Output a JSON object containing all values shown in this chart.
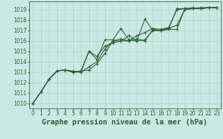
{
  "title": "Graphe pression niveau de la mer (hPa)",
  "bg_color": "#cce8e4",
  "grid_color": "#aad4cc",
  "line_color": "#2d5e30",
  "ylim": [
    1009.5,
    1019.8
  ],
  "xlim": [
    -0.5,
    23.5
  ],
  "yticks": [
    1010,
    1011,
    1012,
    1013,
    1014,
    1015,
    1016,
    1017,
    1018,
    1019
  ],
  "xticks": [
    0,
    1,
    2,
    3,
    4,
    5,
    6,
    7,
    8,
    9,
    10,
    11,
    12,
    13,
    14,
    15,
    16,
    17,
    18,
    19,
    20,
    21,
    22,
    23
  ],
  "series": [
    [
      1010.0,
      1011.1,
      1012.3,
      1013.1,
      1013.2,
      1013.1,
      1013.0,
      1015.0,
      1014.2,
      1016.1,
      1016.1,
      1017.2,
      1016.1,
      1016.0,
      1018.1,
      1017.0,
      1017.0,
      1017.2,
      1019.1,
      1019.1,
      1019.1,
      1019.1,
      1019.2,
      1019.2
    ],
    [
      1010.0,
      1011.1,
      1012.3,
      1013.1,
      1013.2,
      1013.0,
      1013.1,
      1013.2,
      1013.8,
      1014.8,
      1016.0,
      1016.0,
      1016.0,
      1016.2,
      1016.0,
      1017.1,
      1017.0,
      1017.1,
      1017.1,
      1019.1,
      1019.1,
      1019.1,
      1019.2,
      1019.2
    ],
    [
      1010.0,
      1011.1,
      1012.3,
      1013.1,
      1013.2,
      1013.0,
      1013.1,
      1015.0,
      1014.5,
      1015.5,
      1015.8,
      1016.0,
      1016.5,
      1016.0,
      1016.1,
      1017.0,
      1017.0,
      1017.2,
      1017.5,
      1019.0,
      1019.1,
      1019.2,
      1019.2,
      1019.2
    ],
    [
      1010.0,
      1011.1,
      1012.3,
      1013.1,
      1013.2,
      1013.0,
      1013.0,
      1013.5,
      1014.0,
      1015.2,
      1016.0,
      1016.2,
      1016.0,
      1016.5,
      1016.8,
      1017.2,
      1017.1,
      1017.3,
      1019.0,
      1019.1,
      1019.2,
      1019.1,
      1019.2,
      1019.2
    ]
  ],
  "title_fontsize": 7.5,
  "tick_fontsize": 5.5,
  "marker": "+",
  "markersize": 3.5,
  "linewidth": 0.8
}
